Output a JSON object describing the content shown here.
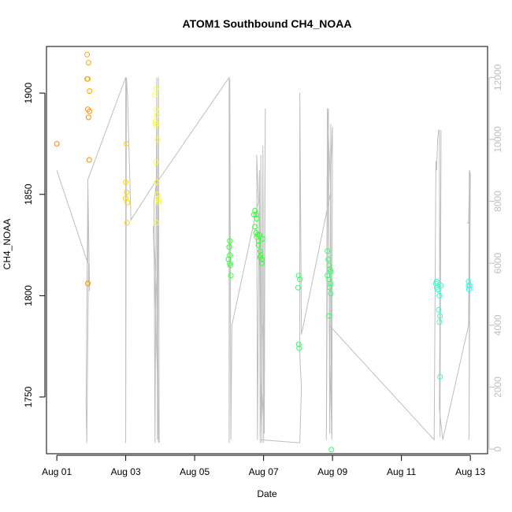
{
  "chart_data": {
    "type": "scatter",
    "title": "ATOM1 Southbound CH4_NOAA",
    "xlabel": "Date",
    "ylabel": "CH4_NOAA",
    "x_ticks": [
      "Aug 01",
      "Aug 03",
      "Aug 05",
      "Aug 07",
      "Aug 09",
      "Aug 11",
      "Aug 13"
    ],
    "x_tick_days": [
      1,
      3,
      5,
      7,
      9,
      11,
      13
    ],
    "xlim_days": [
      0.7,
      13.5
    ],
    "y_ticks": [
      1750,
      1800,
      1850,
      1900
    ],
    "ylim": [
      1722,
      1923
    ],
    "y2_ticks": [
      0,
      2000,
      4000,
      6000,
      8000,
      10000,
      12000
    ],
    "y2lim": [
      -150,
      13000
    ],
    "series_points": {
      "colors": [
        "#FF8C00",
        "#FFA500",
        "#FFD000",
        "#FFFF33",
        "#CCFF33",
        "#33FF33",
        "#33FF66",
        "#33FF99",
        "#33FFCC",
        "#33FFE6"
      ],
      "points": [
        [
          1.0,
          1875,
          0
        ],
        [
          1.88,
          1919,
          1
        ],
        [
          1.88,
          1907,
          1
        ],
        [
          1.92,
          1915,
          1
        ],
        [
          1.9,
          1907,
          1
        ],
        [
          1.95,
          1901,
          1
        ],
        [
          1.9,
          1892,
          0
        ],
        [
          1.95,
          1891,
          0
        ],
        [
          1.92,
          1888,
          0
        ],
        [
          1.94,
          1867,
          0
        ],
        [
          1.9,
          1806,
          0
        ],
        [
          3.02,
          1875,
          2
        ],
        [
          3.0,
          1856,
          2
        ],
        [
          3.03,
          1851,
          2
        ],
        [
          3.0,
          1848,
          2
        ],
        [
          3.05,
          1846,
          2
        ],
        [
          3.04,
          1836,
          2
        ],
        [
          3.88,
          1902,
          3
        ],
        [
          3.85,
          1899,
          3
        ],
        [
          3.88,
          1892,
          3
        ],
        [
          3.9,
          1889,
          3
        ],
        [
          3.86,
          1886,
          3
        ],
        [
          3.9,
          1885,
          3
        ],
        [
          3.87,
          1884,
          3
        ],
        [
          3.92,
          1877,
          3
        ],
        [
          3.88,
          1866,
          3
        ],
        [
          3.9,
          1856,
          3
        ],
        [
          3.92,
          1850,
          3
        ],
        [
          3.95,
          1848,
          3
        ],
        [
          3.97,
          1847,
          3
        ],
        [
          3.95,
          1846,
          3
        ],
        [
          3.9,
          1836,
          3
        ],
        [
          6.02,
          1827,
          5
        ],
        [
          6.0,
          1824,
          5
        ],
        [
          6.02,
          1820,
          5
        ],
        [
          5.98,
          1818,
          5
        ],
        [
          6.02,
          1816,
          5
        ],
        [
          6.03,
          1815,
          5
        ],
        [
          6.05,
          1810,
          5
        ],
        [
          6.75,
          1842,
          5
        ],
        [
          6.78,
          1840,
          5
        ],
        [
          6.8,
          1838,
          5
        ],
        [
          6.72,
          1840,
          5
        ],
        [
          6.75,
          1834,
          5
        ],
        [
          6.78,
          1831,
          5
        ],
        [
          6.8,
          1829,
          5
        ],
        [
          6.85,
          1827,
          5
        ],
        [
          6.85,
          1825,
          5
        ],
        [
          6.9,
          1822,
          5
        ],
        [
          6.92,
          1820,
          5
        ],
        [
          6.95,
          1818,
          5
        ],
        [
          6.97,
          1828,
          5
        ],
        [
          6.95,
          1816,
          5
        ],
        [
          6.9,
          1819,
          5
        ],
        [
          6.82,
          1830,
          5
        ],
        [
          6.88,
          1830,
          5
        ],
        [
          8.02,
          1810,
          6
        ],
        [
          8.05,
          1808,
          6
        ],
        [
          8.0,
          1804,
          6
        ],
        [
          8.02,
          1776,
          6
        ],
        [
          8.03,
          1774,
          6
        ],
        [
          8.85,
          1822,
          6
        ],
        [
          8.88,
          1818,
          6
        ],
        [
          8.9,
          1815,
          6
        ],
        [
          8.92,
          1813,
          6
        ],
        [
          8.85,
          1810,
          6
        ],
        [
          8.9,
          1808,
          6
        ],
        [
          8.95,
          1806,
          6
        ],
        [
          8.92,
          1804,
          6
        ],
        [
          8.95,
          1801,
          6
        ],
        [
          8.9,
          1790,
          6
        ],
        [
          8.97,
          1724,
          6
        ],
        [
          8.95,
          1812,
          6
        ],
        [
          12.0,
          1806,
          8
        ],
        [
          12.02,
          1804,
          8
        ],
        [
          12.05,
          1803,
          8
        ],
        [
          12.1,
          1800,
          8
        ],
        [
          12.08,
          1793,
          8
        ],
        [
          12.12,
          1790,
          8
        ],
        [
          12.1,
          1787,
          8
        ],
        [
          12.15,
          1805,
          8
        ],
        [
          12.12,
          1760,
          8
        ],
        [
          12.02,
          1807,
          8
        ],
        [
          12.95,
          1807,
          9
        ],
        [
          12.98,
          1805,
          9
        ],
        [
          12.96,
          1803,
          9
        ],
        [
          12.95,
          1805,
          9
        ]
      ]
    },
    "series_line": {
      "color": "#bebebe",
      "points": [
        [
          1.0,
          9000
        ],
        [
          1.9,
          6000
        ],
        [
          1.9,
          8500
        ],
        [
          1.85,
          1500
        ],
        [
          1.87,
          200
        ],
        [
          1.92,
          6000
        ],
        [
          1.95,
          5100
        ],
        [
          1.9,
          8700
        ],
        [
          3.0,
          12000
        ],
        [
          3.0,
          200
        ],
        [
          3.02,
          12000
        ],
        [
          3.05,
          11500
        ],
        [
          3.15,
          7400
        ],
        [
          3.9,
          8700
        ],
        [
          3.82,
          8000
        ],
        [
          3.85,
          200
        ],
        [
          3.9,
          12000
        ],
        [
          3.92,
          300
        ],
        [
          3.95,
          12000
        ],
        [
          3.97,
          200
        ],
        [
          3.8,
          7200
        ],
        [
          3.9,
          5000
        ],
        [
          3.95,
          200
        ],
        [
          3.9,
          8600
        ],
        [
          6.0,
          12000
        ],
        [
          6.0,
          200
        ],
        [
          6.02,
          11950
        ],
        [
          6.05,
          300
        ],
        [
          6.08,
          4000
        ],
        [
          6.85,
          8000
        ],
        [
          6.8,
          9500
        ],
        [
          6.82,
          300
        ],
        [
          6.88,
          9000
        ],
        [
          6.9,
          200
        ],
        [
          6.92,
          9500
        ],
        [
          6.95,
          200
        ],
        [
          6.98,
          9800
        ],
        [
          7.0,
          200
        ],
        [
          7.05,
          11000
        ],
        [
          7.02,
          500
        ],
        [
          6.95,
          2000
        ],
        [
          6.95,
          4000
        ],
        [
          6.97,
          4000
        ],
        [
          6.9,
          300
        ],
        [
          8.05,
          200
        ],
        [
          8.1,
          2000
        ],
        [
          8.05,
          3000
        ],
        [
          8.05,
          11500
        ],
        [
          8.1,
          3700
        ],
        [
          8.95,
          8300
        ],
        [
          8.85,
          11000
        ],
        [
          8.82,
          300
        ],
        [
          8.88,
          11000
        ],
        [
          8.92,
          500
        ],
        [
          8.95,
          10500
        ],
        [
          8.97,
          500
        ],
        [
          8.95,
          9000
        ],
        [
          9.0,
          10400
        ],
        [
          8.98,
          300
        ],
        [
          8.9,
          4000
        ],
        [
          11.95,
          300
        ],
        [
          12.0,
          9300
        ],
        [
          12.02,
          9000
        ],
        [
          12.05,
          10000
        ],
        [
          12.08,
          10300
        ],
        [
          12.1,
          10300
        ],
        [
          12.12,
          400
        ],
        [
          12.15,
          10300
        ],
        [
          12.1,
          1300
        ],
        [
          12.2,
          300
        ],
        [
          12.95,
          4000
        ],
        [
          12.97,
          9000
        ],
        [
          13.0,
          8900
        ],
        [
          12.96,
          300
        ],
        [
          12.98,
          9000
        ],
        [
          12.95,
          7300
        ],
        [
          12.9,
          7300
        ]
      ]
    },
    "legend": "none",
    "grid": false
  }
}
